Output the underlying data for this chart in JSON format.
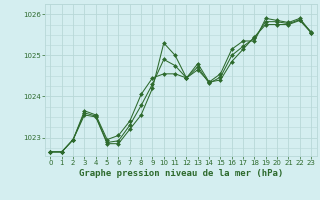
{
  "title": "Graphe pression niveau de la mer (hPa)",
  "bg_color": "#d4eef0",
  "grid_color": "#b8d8d8",
  "line_color": "#2d6a2d",
  "marker_color": "#2d6a2d",
  "xlim": [
    -0.5,
    23.5
  ],
  "ylim": [
    1022.55,
    1026.25
  ],
  "yticks": [
    1023,
    1024,
    1025,
    1026
  ],
  "xticks": [
    0,
    1,
    2,
    3,
    4,
    5,
    6,
    7,
    8,
    9,
    10,
    11,
    12,
    13,
    14,
    15,
    16,
    17,
    18,
    19,
    20,
    21,
    22,
    23
  ],
  "series": [
    [
      1022.65,
      1022.65,
      1022.95,
      1023.55,
      1023.5,
      1022.85,
      1022.85,
      1023.2,
      1023.55,
      1024.2,
      1025.3,
      1025.0,
      1024.45,
      1024.8,
      1024.35,
      1024.4,
      1024.85,
      1025.15,
      1025.45,
      1025.75,
      1025.75,
      1025.75,
      1025.85,
      1025.55
    ],
    [
      1022.65,
      1022.65,
      1022.95,
      1023.65,
      1023.55,
      1022.95,
      1023.05,
      1023.4,
      1024.05,
      1024.45,
      1024.55,
      1024.55,
      1024.45,
      1024.65,
      1024.35,
      1024.55,
      1025.15,
      1025.35,
      1025.35,
      1025.9,
      1025.85,
      1025.8,
      1025.9,
      1025.55
    ],
    [
      1022.65,
      1022.65,
      1022.95,
      1023.6,
      1023.52,
      1022.88,
      1022.92,
      1023.3,
      1023.78,
      1024.3,
      1024.9,
      1024.75,
      1024.45,
      1024.72,
      1024.32,
      1024.47,
      1025.0,
      1025.22,
      1025.42,
      1025.82,
      1025.82,
      1025.77,
      1025.87,
      1025.57
    ]
  ]
}
